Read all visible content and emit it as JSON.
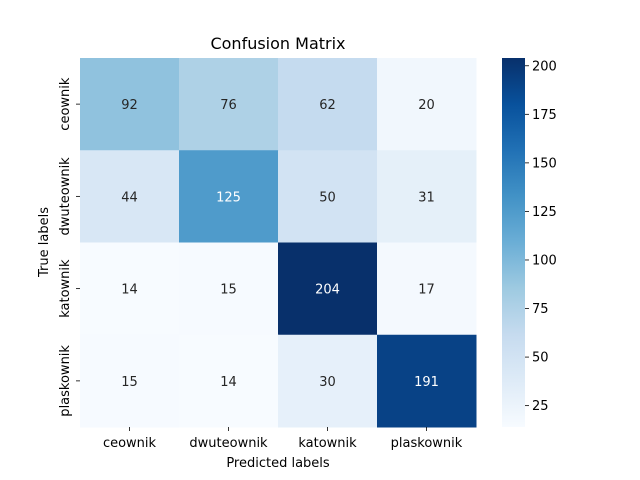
{
  "chart_data": {
    "type": "heatmap",
    "title": "Confusion Matrix",
    "xlabel": "Predicted labels",
    "ylabel": "True labels",
    "x_categories": [
      "ceownik",
      "dwuteownik",
      "katownik",
      "plaskownik"
    ],
    "y_categories": [
      "ceownik",
      "dwuteownik",
      "katownik",
      "plaskownik"
    ],
    "values": [
      [
        92,
        76,
        62,
        20
      ],
      [
        44,
        125,
        50,
        31
      ],
      [
        14,
        15,
        204,
        17
      ],
      [
        15,
        14,
        30,
        191
      ]
    ],
    "colormap": "Blues",
    "color_range": [
      14,
      204
    ],
    "colorbar_ticks": [
      "25",
      "50",
      "75",
      "100",
      "125",
      "150",
      "175",
      "200"
    ],
    "annotations": true
  }
}
